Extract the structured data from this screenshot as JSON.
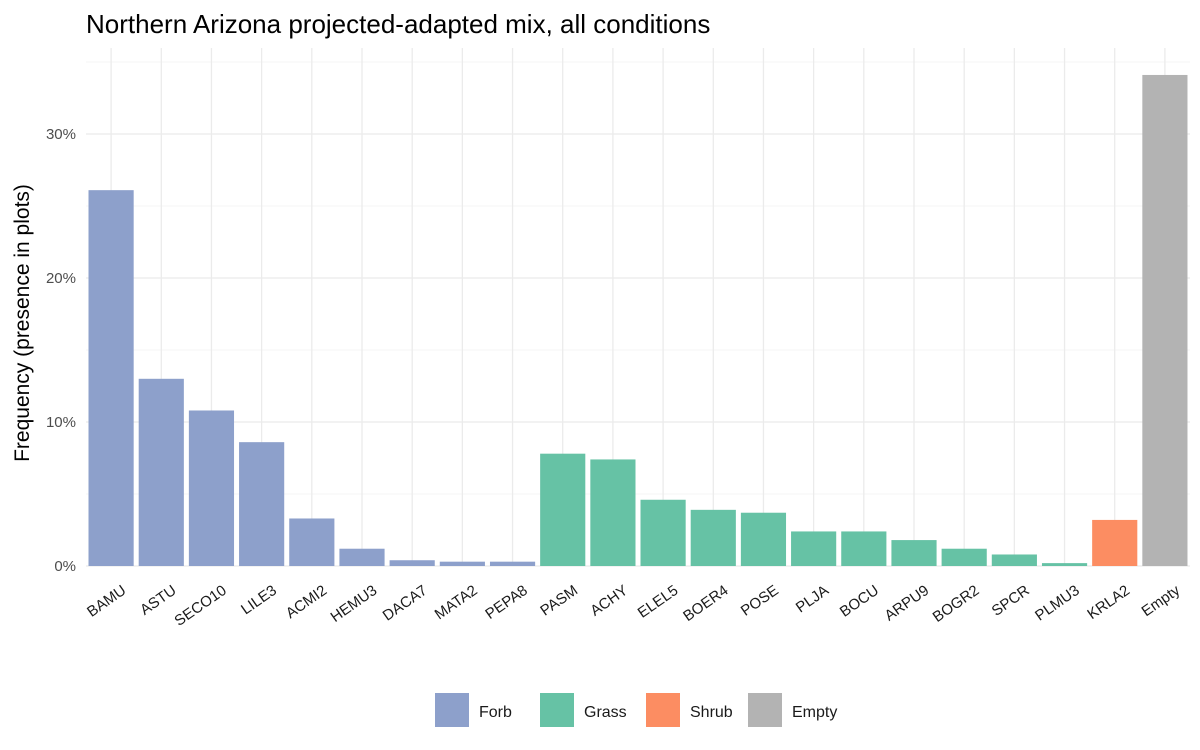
{
  "chart_data": {
    "type": "bar",
    "title": "Northern Arizona projected-adapted mix, all conditions",
    "xlabel": "",
    "ylabel": "Frequency (presence in plots)",
    "ylim": [
      0,
      0.35
    ],
    "yticks": [
      {
        "value": 0,
        "label": "0%"
      },
      {
        "value": 0.1,
        "label": "10%"
      },
      {
        "value": 0.2,
        "label": "20%"
      },
      {
        "value": 0.3,
        "label": "30%"
      }
    ],
    "grid": true,
    "legend_position": "bottom",
    "group_colors": {
      "Forb": "#8da0cb",
      "Grass": "#66c2a5",
      "Shrub": "#fc8d62",
      "Empty": "#b3b3b3"
    },
    "legend": [
      "Forb",
      "Grass",
      "Shrub",
      "Empty"
    ],
    "categories": [
      "BAMU",
      "ASTU",
      "SECO10",
      "LILE3",
      "ACMI2",
      "HEMU3",
      "DACA7",
      "MATA2",
      "PEPA8",
      "PASM",
      "ACHY",
      "ELEL5",
      "BOER4",
      "POSE",
      "PLJA",
      "BOCU",
      "ARPU9",
      "BOGR2",
      "SPCR",
      "PLMU3",
      "KRLA2",
      "Empty"
    ],
    "values": [
      0.261,
      0.13,
      0.108,
      0.086,
      0.033,
      0.012,
      0.004,
      0.003,
      0.003,
      0.078,
      0.074,
      0.046,
      0.039,
      0.037,
      0.024,
      0.024,
      0.018,
      0.012,
      0.008,
      0.002,
      0.032,
      0.341
    ],
    "groups": [
      "Forb",
      "Forb",
      "Forb",
      "Forb",
      "Forb",
      "Forb",
      "Forb",
      "Forb",
      "Forb",
      "Grass",
      "Grass",
      "Grass",
      "Grass",
      "Grass",
      "Grass",
      "Grass",
      "Grass",
      "Grass",
      "Grass",
      "Grass",
      "Shrub",
      "Empty"
    ]
  }
}
